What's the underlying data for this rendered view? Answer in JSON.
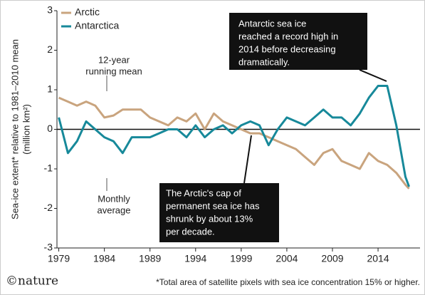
{
  "chart_data": {
    "type": "line",
    "y_label": [
      "Sea-ice extent* relative to 1981–2010 mean",
      "(million km²)"
    ],
    "x": [
      1979,
      1980,
      1981,
      1982,
      1983,
      1984,
      1985,
      1986,
      1987,
      1988,
      1989,
      1990,
      1991,
      1992,
      1993,
      1994,
      1995,
      1996,
      1997,
      1998,
      1999,
      2000,
      2001,
      2002,
      2003,
      2004,
      2005,
      2006,
      2007,
      2008,
      2009,
      2010,
      2011,
      2012,
      2013,
      2014,
      2015,
      2016,
      2017,
      2017.4
    ],
    "series": [
      {
        "name": "Arctic",
        "color": "#c9a47e",
        "values": [
          0.8,
          0.7,
          0.6,
          0.7,
          0.6,
          0.3,
          0.35,
          0.5,
          0.5,
          0.5,
          0.3,
          0.2,
          0.1,
          0.3,
          0.2,
          0.4,
          0.0,
          0.4,
          0.2,
          0.1,
          0.0,
          -0.1,
          -0.1,
          -0.2,
          -0.3,
          -0.4,
          -0.5,
          -0.7,
          -0.9,
          -0.6,
          -0.5,
          -0.8,
          -0.9,
          -1.0,
          -0.6,
          -0.8,
          -0.9,
          -1.1,
          -1.4,
          -1.5
        ]
      },
      {
        "name": "Antarctica",
        "color": "#17899a",
        "values": [
          0.3,
          -0.6,
          -0.3,
          0.2,
          0.0,
          -0.2,
          -0.3,
          -0.6,
          -0.2,
          -0.2,
          -0.2,
          -0.1,
          0.0,
          0.0,
          -0.2,
          0.1,
          -0.2,
          0.0,
          0.1,
          -0.1,
          0.1,
          0.2,
          0.1,
          -0.4,
          0.0,
          0.3,
          0.2,
          0.1,
          0.3,
          0.5,
          0.3,
          0.3,
          0.1,
          0.4,
          0.8,
          1.1,
          1.1,
          0.1,
          -1.2,
          -1.45
        ]
      }
    ],
    "xlim": [
      1978.8,
      2018.6
    ],
    "xticks": [
      1979,
      1984,
      1989,
      1994,
      1999,
      2004,
      2009,
      2014
    ],
    "ylim": [
      -3,
      3
    ],
    "yticks": [
      -3,
      -2,
      -1,
      0,
      1,
      2,
      3
    ],
    "legend": "top-left",
    "annotations": {
      "running_mean": [
        "12-year",
        "running mean"
      ],
      "monthly": [
        "Monthly",
        "average"
      ],
      "antarctic_box": [
        "Antarctic sea ice",
        "reached a record high in",
        "2014 before decreasing",
        "dramatically."
      ],
      "arctic_box": [
        "The Arctic's cap of",
        "permanent sea ice has",
        "shrunk by about 13%",
        "per decade."
      ]
    },
    "credit": "©nature",
    "footnote": "*Total area of satellite pixels with sea ice concentration 15% or higher."
  }
}
